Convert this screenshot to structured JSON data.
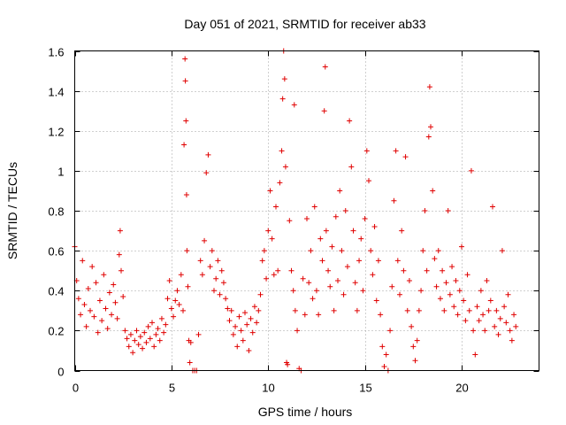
{
  "chart_data": {
    "type": "scatter",
    "title": "Day 051 of 2021, SRMTID for receiver ab33",
    "xlabel": "GPS time / hours",
    "ylabel": "SRMTID / TECUs",
    "xlim": [
      0,
      24
    ],
    "ylim": [
      0,
      1.6
    ],
    "x_ticks": [
      0,
      5,
      10,
      15,
      20
    ],
    "x_tick_labels": [
      "0",
      "5",
      "10",
      "15",
      "20"
    ],
    "y_ticks": [
      0,
      0.2,
      0.4,
      0.6,
      0.8,
      1.0,
      1.2,
      1.4,
      1.6
    ],
    "y_tick_labels": [
      "0",
      "0.2",
      "0.4",
      "0.6",
      "0.8",
      "1",
      "1.2",
      "1.4",
      "1.6"
    ],
    "grid": true,
    "marker": "+",
    "color": "#e00000",
    "series": [
      {
        "name": "SRMTID",
        "points": [
          [
            0.0,
            0.62
          ],
          [
            0.1,
            0.45
          ],
          [
            0.2,
            0.36
          ],
          [
            0.3,
            0.28
          ],
          [
            0.4,
            0.55
          ],
          [
            0.5,
            0.33
          ],
          [
            0.6,
            0.22
          ],
          [
            0.7,
            0.41
          ],
          [
            0.8,
            0.3
          ],
          [
            0.9,
            0.52
          ],
          [
            1.0,
            0.27
          ],
          [
            1.1,
            0.44
          ],
          [
            1.2,
            0.19
          ],
          [
            1.3,
            0.35
          ],
          [
            1.4,
            0.25
          ],
          [
            1.5,
            0.48
          ],
          [
            1.6,
            0.31
          ],
          [
            1.7,
            0.21
          ],
          [
            1.8,
            0.39
          ],
          [
            1.9,
            0.28
          ],
          [
            2.0,
            0.43
          ],
          [
            2.1,
            0.34
          ],
          [
            2.2,
            0.26
          ],
          [
            2.3,
            0.58
          ],
          [
            2.35,
            0.7
          ],
          [
            2.4,
            0.5
          ],
          [
            2.5,
            0.37
          ],
          [
            2.6,
            0.2
          ],
          [
            2.7,
            0.16
          ],
          [
            2.8,
            0.12
          ],
          [
            2.9,
            0.18
          ],
          [
            3.0,
            0.09
          ],
          [
            3.1,
            0.15
          ],
          [
            3.2,
            0.2
          ],
          [
            3.3,
            0.13
          ],
          [
            3.4,
            0.17
          ],
          [
            3.5,
            0.11
          ],
          [
            3.6,
            0.19
          ],
          [
            3.7,
            0.14
          ],
          [
            3.8,
            0.22
          ],
          [
            3.9,
            0.16
          ],
          [
            4.0,
            0.24
          ],
          [
            4.1,
            0.12
          ],
          [
            4.2,
            0.18
          ],
          [
            4.3,
            0.21
          ],
          [
            4.4,
            0.15
          ],
          [
            4.5,
            0.26
          ],
          [
            4.6,
            0.19
          ],
          [
            4.7,
            0.23
          ],
          [
            4.8,
            0.36
          ],
          [
            4.9,
            0.45
          ],
          [
            5.0,
            0.31
          ],
          [
            5.1,
            0.27
          ],
          [
            5.2,
            0.35
          ],
          [
            5.3,
            0.4
          ],
          [
            5.4,
            0.33
          ],
          [
            5.5,
            0.48
          ],
          [
            5.6,
            0.3
          ],
          [
            5.65,
            1.13
          ],
          [
            5.7,
            1.56
          ],
          [
            5.72,
            1.45
          ],
          [
            5.75,
            1.25
          ],
          [
            5.78,
            0.88
          ],
          [
            5.8,
            0.6
          ],
          [
            5.85,
            0.42
          ],
          [
            5.9,
            0.15
          ],
          [
            5.95,
            0.04
          ],
          [
            6.0,
            0.14
          ],
          [
            6.1,
            0.0
          ],
          [
            6.2,
            0.0
          ],
          [
            6.3,
            0.0
          ],
          [
            6.4,
            0.18
          ],
          [
            6.5,
            0.55
          ],
          [
            6.6,
            0.48
          ],
          [
            6.7,
            0.65
          ],
          [
            6.8,
            0.99
          ],
          [
            6.9,
            1.08
          ],
          [
            7.0,
            0.52
          ],
          [
            7.1,
            0.6
          ],
          [
            7.2,
            0.4
          ],
          [
            7.3,
            0.46
          ],
          [
            7.4,
            0.55
          ],
          [
            7.5,
            0.38
          ],
          [
            7.6,
            0.5
          ],
          [
            7.7,
            0.44
          ],
          [
            7.8,
            0.36
          ],
          [
            7.9,
            0.31
          ],
          [
            8.0,
            0.25
          ],
          [
            8.1,
            0.3
          ],
          [
            8.2,
            0.18
          ],
          [
            8.3,
            0.22
          ],
          [
            8.4,
            0.12
          ],
          [
            8.5,
            0.27
          ],
          [
            8.6,
            0.2
          ],
          [
            8.7,
            0.15
          ],
          [
            8.8,
            0.29
          ],
          [
            8.9,
            0.23
          ],
          [
            9.0,
            0.1
          ],
          [
            9.1,
            0.26
          ],
          [
            9.2,
            0.19
          ],
          [
            9.3,
            0.32
          ],
          [
            9.4,
            0.24
          ],
          [
            9.5,
            0.3
          ],
          [
            9.6,
            0.38
          ],
          [
            9.7,
            0.55
          ],
          [
            9.8,
            0.6
          ],
          [
            9.9,
            0.46
          ],
          [
            10.0,
            0.7
          ],
          [
            10.1,
            0.9
          ],
          [
            10.2,
            0.66
          ],
          [
            10.3,
            0.48
          ],
          [
            10.4,
            0.82
          ],
          [
            10.5,
            0.5
          ],
          [
            10.6,
            0.94
          ],
          [
            10.7,
            1.1
          ],
          [
            10.75,
            1.36
          ],
          [
            10.8,
            1.6
          ],
          [
            10.85,
            1.46
          ],
          [
            10.9,
            1.02
          ],
          [
            10.95,
            0.04
          ],
          [
            11.0,
            0.03
          ],
          [
            11.1,
            0.75
          ],
          [
            11.2,
            0.5
          ],
          [
            11.3,
            0.4
          ],
          [
            11.35,
            1.33
          ],
          [
            11.4,
            0.3
          ],
          [
            11.5,
            0.2
          ],
          [
            11.6,
            0.01
          ],
          [
            11.7,
            0.0
          ],
          [
            11.8,
            0.46
          ],
          [
            11.9,
            0.28
          ],
          [
            12.0,
            0.76
          ],
          [
            12.1,
            0.44
          ],
          [
            12.2,
            0.6
          ],
          [
            12.3,
            0.36
          ],
          [
            12.4,
            0.82
          ],
          [
            12.5,
            0.4
          ],
          [
            12.6,
            0.28
          ],
          [
            12.7,
            0.66
          ],
          [
            12.8,
            0.55
          ],
          [
            12.9,
            1.3
          ],
          [
            12.95,
            1.52
          ],
          [
            13.0,
            0.7
          ],
          [
            13.1,
            0.5
          ],
          [
            13.2,
            0.42
          ],
          [
            13.3,
            0.62
          ],
          [
            13.4,
            0.3
          ],
          [
            13.5,
            0.77
          ],
          [
            13.6,
            0.45
          ],
          [
            13.7,
            0.9
          ],
          [
            13.8,
            0.6
          ],
          [
            13.9,
            0.38
          ],
          [
            14.0,
            0.8
          ],
          [
            14.1,
            0.52
          ],
          [
            14.2,
            1.25
          ],
          [
            14.3,
            1.02
          ],
          [
            14.4,
            0.7
          ],
          [
            14.5,
            0.44
          ],
          [
            14.6,
            0.3
          ],
          [
            14.7,
            0.55
          ],
          [
            14.8,
            0.66
          ],
          [
            14.9,
            0.4
          ],
          [
            15.0,
            0.76
          ],
          [
            15.1,
            1.1
          ],
          [
            15.2,
            0.95
          ],
          [
            15.3,
            0.6
          ],
          [
            15.4,
            0.48
          ],
          [
            15.5,
            0.72
          ],
          [
            15.6,
            0.35
          ],
          [
            15.7,
            0.55
          ],
          [
            15.8,
            0.28
          ],
          [
            15.9,
            0.12
          ],
          [
            16.0,
            0.02
          ],
          [
            16.1,
            0.08
          ],
          [
            16.2,
            0.0
          ],
          [
            16.3,
            0.2
          ],
          [
            16.4,
            0.42
          ],
          [
            16.5,
            0.85
          ],
          [
            16.6,
            1.1
          ],
          [
            16.7,
            0.55
          ],
          [
            16.8,
            0.38
          ],
          [
            16.9,
            0.7
          ],
          [
            17.0,
            0.5
          ],
          [
            17.1,
            1.07
          ],
          [
            17.2,
            0.3
          ],
          [
            17.3,
            0.45
          ],
          [
            17.4,
            0.22
          ],
          [
            17.5,
            0.12
          ],
          [
            17.6,
            0.05
          ],
          [
            17.7,
            0.15
          ],
          [
            17.8,
            0.3
          ],
          [
            17.9,
            0.4
          ],
          [
            18.0,
            0.6
          ],
          [
            18.1,
            0.8
          ],
          [
            18.2,
            0.5
          ],
          [
            18.3,
            1.17
          ],
          [
            18.35,
            1.42
          ],
          [
            18.4,
            1.22
          ],
          [
            18.5,
            0.9
          ],
          [
            18.6,
            0.56
          ],
          [
            18.7,
            0.42
          ],
          [
            18.8,
            0.6
          ],
          [
            18.9,
            0.36
          ],
          [
            19.0,
            0.5
          ],
          [
            19.1,
            0.3
          ],
          [
            19.2,
            0.44
          ],
          [
            19.3,
            0.8
          ],
          [
            19.4,
            0.38
          ],
          [
            19.5,
            0.52
          ],
          [
            19.6,
            0.32
          ],
          [
            19.7,
            0.45
          ],
          [
            19.8,
            0.28
          ],
          [
            19.9,
            0.4
          ],
          [
            20.0,
            0.62
          ],
          [
            20.1,
            0.35
          ],
          [
            20.2,
            0.25
          ],
          [
            20.3,
            0.48
          ],
          [
            20.4,
            0.3
          ],
          [
            20.5,
            1.0
          ],
          [
            20.6,
            0.2
          ],
          [
            20.7,
            0.08
          ],
          [
            20.8,
            0.32
          ],
          [
            20.9,
            0.25
          ],
          [
            21.0,
            0.4
          ],
          [
            21.1,
            0.28
          ],
          [
            21.2,
            0.2
          ],
          [
            21.3,
            0.45
          ],
          [
            21.4,
            0.3
          ],
          [
            21.5,
            0.35
          ],
          [
            21.6,
            0.82
          ],
          [
            21.7,
            0.22
          ],
          [
            21.8,
            0.3
          ],
          [
            21.9,
            0.18
          ],
          [
            22.0,
            0.26
          ],
          [
            22.1,
            0.6
          ],
          [
            22.2,
            0.32
          ],
          [
            22.3,
            0.24
          ],
          [
            22.4,
            0.38
          ],
          [
            22.5,
            0.2
          ],
          [
            22.6,
            0.15
          ],
          [
            22.7,
            0.28
          ],
          [
            22.8,
            0.22
          ]
        ]
      }
    ]
  }
}
